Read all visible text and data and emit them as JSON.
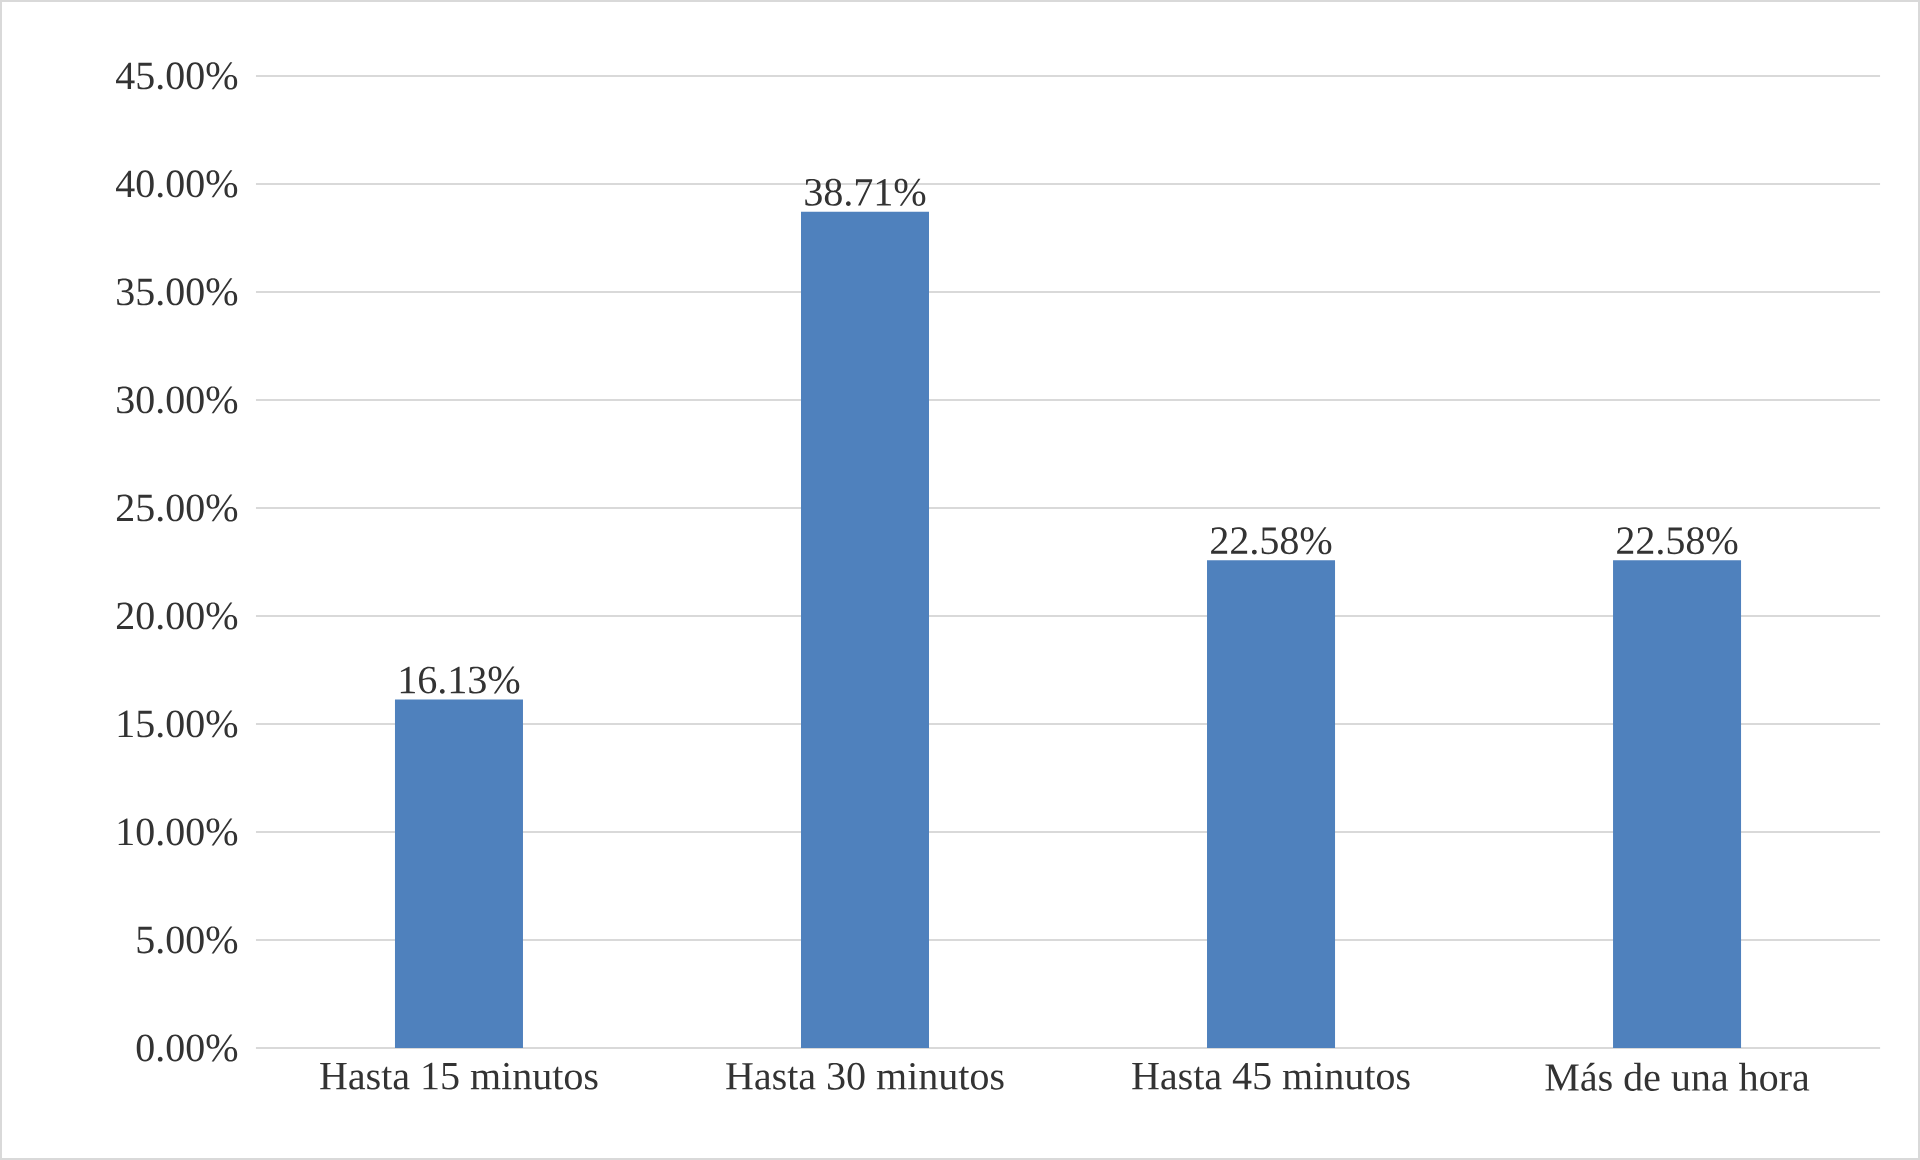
{
  "chart_data": {
    "type": "bar",
    "categories": [
      "Hasta 15 minutos",
      "Hasta 30 minutos",
      "Hasta 45 minutos",
      "Más de una hora"
    ],
    "values": [
      16.13,
      38.71,
      22.58,
      22.58
    ],
    "value_labels": [
      "16.13%",
      "38.71%",
      "22.58%",
      "22.58%"
    ],
    "color": "#4f81bd",
    "ylim": [
      0,
      45
    ],
    "yticks": [
      {
        "value": 0,
        "label": "0.00%"
      },
      {
        "value": 5,
        "label": "5.00%"
      },
      {
        "value": 10,
        "label": "10.00%"
      },
      {
        "value": 15,
        "label": "15.00%"
      },
      {
        "value": 20,
        "label": "20.00%"
      },
      {
        "value": 25,
        "label": "25.00%"
      },
      {
        "value": 30,
        "label": "30.00%"
      },
      {
        "value": 35,
        "label": "35.00%"
      },
      {
        "value": 40,
        "label": "40.00%"
      },
      {
        "value": 45,
        "label": "45.00%"
      }
    ],
    "grid": "y"
  }
}
